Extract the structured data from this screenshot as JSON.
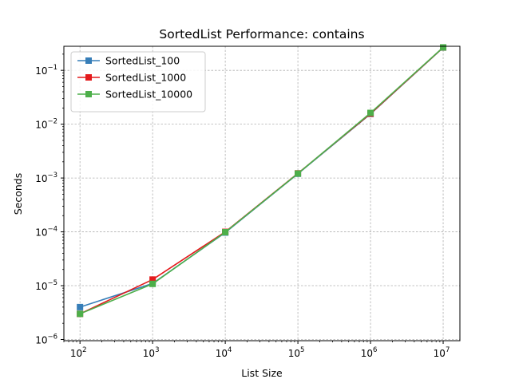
{
  "chart_data": {
    "type": "line",
    "title": "SortedList Performance: contains",
    "xlabel": "List Size",
    "ylabel": "Seconds",
    "xscale": "log",
    "yscale": "log",
    "x": [
      100,
      1000,
      10000,
      100000,
      1000000,
      10000000
    ],
    "xlim": [
      60,
      17000000
    ],
    "ylim": [
      9.5e-07,
      0.28
    ],
    "x_ticks": [
      {
        "value": 100,
        "base": "10",
        "exp": "2"
      },
      {
        "value": 1000,
        "base": "10",
        "exp": "3"
      },
      {
        "value": 10000,
        "base": "10",
        "exp": "4"
      },
      {
        "value": 100000,
        "base": "10",
        "exp": "5"
      },
      {
        "value": 1000000,
        "base": "10",
        "exp": "6"
      },
      {
        "value": 10000000,
        "base": "10",
        "exp": "7"
      }
    ],
    "y_ticks": [
      {
        "value": 1e-06,
        "base": "10",
        "exp": "−6"
      },
      {
        "value": 1e-05,
        "base": "10",
        "exp": "−5"
      },
      {
        "value": 0.0001,
        "base": "10",
        "exp": "−4"
      },
      {
        "value": 0.001,
        "base": "10",
        "exp": "−3"
      },
      {
        "value": 0.01,
        "base": "10",
        "exp": "−2"
      },
      {
        "value": 0.1,
        "base": "10",
        "exp": "−1"
      }
    ],
    "grid": true,
    "legend_position": "top-left",
    "series": [
      {
        "name": "SortedList_100",
        "color": "#377eb8",
        "values": [
          4e-06,
          1.1e-05,
          9.7e-05,
          0.0012,
          0.0155,
          0.265
        ]
      },
      {
        "name": "SortedList_1000",
        "color": "#e41a1c",
        "values": [
          3e-06,
          1.3e-05,
          0.0001,
          0.00122,
          0.0157,
          0.266
        ]
      },
      {
        "name": "SortedList_10000",
        "color": "#4daf4a",
        "values": [
          3e-06,
          1.08e-05,
          9.85e-05,
          0.00121,
          0.0162,
          0.267
        ]
      }
    ]
  }
}
